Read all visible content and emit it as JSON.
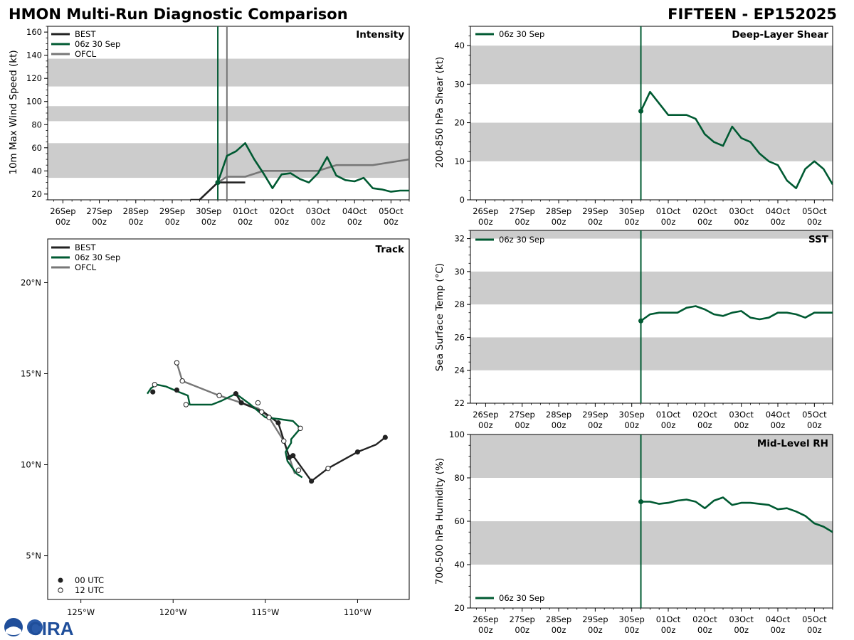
{
  "header": {
    "title_left": "HMON Multi-Run Diagnostic Comparison",
    "title_right": "FIFTEEN - EP152025"
  },
  "time_axis": {
    "day_ticks": [
      {
        "day": "26Sep",
        "hour": "00z",
        "t": 0
      },
      {
        "day": "27Sep",
        "hour": "00z",
        "t": 24
      },
      {
        "day": "28Sep",
        "hour": "00z",
        "t": 48
      },
      {
        "day": "29Sep",
        "hour": "00z",
        "t": 72
      },
      {
        "day": "30Sep",
        "hour": "00z",
        "t": 96
      },
      {
        "day": "01Oct",
        "hour": "00z",
        "t": 120
      },
      {
        "day": "02Oct",
        "hour": "00z",
        "t": 144
      },
      {
        "day": "03Oct",
        "hour": "00z",
        "t": 168
      },
      {
        "day": "04Oct",
        "hour": "00z",
        "t": 192
      },
      {
        "day": "05Oct",
        "hour": "00z",
        "t": 216
      }
    ],
    "range_hours": [
      -10,
      228
    ],
    "init_time_hours": 102,
    "ofcl_init_hours": 108
  },
  "legend": {
    "best": "BEST",
    "run": "06z 30 Sep",
    "ofcl": "OFCL",
    "utc00": "00 UTC",
    "utc12": "12 UTC"
  },
  "colors": {
    "best": "#222222",
    "run": "#005a32",
    "ofcl": "#777777",
    "band": "#cccccc"
  },
  "chart_data": [
    {
      "type": "line",
      "id": "intensity",
      "title": "Intensity",
      "ylabel": "10m Max Wind Speed (kt)",
      "ylim": [
        15,
        165
      ],
      "yticks": [
        20,
        40,
        60,
        80,
        100,
        120,
        140,
        160
      ],
      "bands": [
        [
          34,
          64
        ],
        [
          83,
          96
        ],
        [
          113,
          137
        ]
      ],
      "series": [
        {
          "name": "BEST",
          "x": [
            84,
            90,
            102,
            108,
            120
          ],
          "values": [
            15,
            15,
            30,
            30,
            30
          ]
        },
        {
          "name": "06z 30 Sep",
          "x": [
            102,
            108,
            114,
            120,
            126,
            132,
            138,
            144,
            150,
            156,
            162,
            168,
            174,
            180,
            186,
            192,
            198,
            204,
            210,
            216,
            222,
            228
          ],
          "values": [
            30,
            53,
            57,
            64,
            50,
            38,
            25,
            37,
            38,
            33,
            30,
            38,
            52,
            36,
            32,
            31,
            34,
            25,
            24,
            22,
            23,
            23
          ]
        },
        {
          "name": "OFCL",
          "x": [
            102,
            108,
            120,
            132,
            144,
            156,
            168,
            180,
            204,
            228
          ],
          "values": [
            30,
            35,
            35,
            40,
            40,
            40,
            40,
            45,
            45,
            50
          ]
        }
      ]
    },
    {
      "type": "map",
      "id": "track",
      "title": "Track",
      "xlim": [
        -126.8,
        -107.2
      ],
      "ylim": [
        2.6,
        22.4
      ],
      "xticks": [
        {
          "v": -125,
          "label": "125°W"
        },
        {
          "v": -120,
          "label": "120°W"
        },
        {
          "v": -115,
          "label": "115°W"
        },
        {
          "v": -110,
          "label": "110°W"
        }
      ],
      "yticks": [
        {
          "v": 5,
          "label": "5°N"
        },
        {
          "v": 10,
          "label": "10°N"
        },
        {
          "v": 15,
          "label": "15°N"
        },
        {
          "v": 20,
          "label": "20°N"
        }
      ],
      "series": [
        {
          "name": "BEST",
          "lon": [
            -108.5,
            -109.0,
            -110.0,
            -111.6,
            -112.5,
            -113.5,
            -113.7,
            -114.3,
            -114.7,
            -115.1,
            -116.3,
            -116.6
          ],
          "lat": [
            11.5,
            11.1,
            10.7,
            9.8,
            9.1,
            10.5,
            10.4,
            12.3,
            12.6,
            12.9,
            13.4,
            13.9
          ],
          "points00": [
            [
              -108.5,
              11.5
            ],
            [
              -110.0,
              10.7
            ],
            [
              -112.5,
              9.1
            ],
            [
              -113.5,
              10.5
            ],
            [
              -113.7,
              10.4
            ],
            [
              -114.3,
              12.3
            ],
            [
              -116.3,
              13.4
            ],
            [
              -116.6,
              13.9
            ],
            [
              -119.8,
              14.1
            ],
            [
              -121.1,
              14.0
            ]
          ],
          "points12": [
            [
              -111.6,
              9.8
            ],
            [
              -113.2,
              9.7
            ],
            [
              -113.1,
              12.0
            ],
            [
              -114.0,
              11.3
            ],
            [
              -114.8,
              12.6
            ],
            [
              -115.2,
              12.9
            ],
            [
              -115.4,
              13.4
            ],
            [
              -117.5,
              13.8
            ],
            [
              -119.3,
              13.3
            ],
            [
              -119.5,
              14.6
            ],
            [
              -119.8,
              15.6
            ],
            [
              -121.0,
              14.4
            ]
          ]
        },
        {
          "name": "06z 30 Sep",
          "lon": [
            -113.0,
            -113.3,
            -113.8,
            -113.9,
            -113.6,
            -113.6,
            -113.1,
            -113.5,
            -114.2,
            -115.0,
            -115.8,
            -116.6,
            -117.4,
            -117.9,
            -119.1,
            -119.2,
            -119.7,
            -120.4,
            -120.9,
            -121.2,
            -121.4
          ],
          "lat": [
            9.3,
            9.5,
            10.2,
            10.7,
            11.2,
            11.4,
            12.0,
            12.4,
            12.5,
            12.6,
            13.3,
            13.9,
            13.5,
            13.3,
            13.3,
            13.8,
            14.0,
            14.3,
            14.4,
            14.2,
            13.9
          ]
        },
        {
          "name": "OFCL",
          "lon": [
            -113.4,
            -114.0,
            -114.8,
            -115.4,
            -117.5,
            -119.5,
            -119.8
          ],
          "lat": [
            9.5,
            11.3,
            12.6,
            13.1,
            13.8,
            14.6,
            15.6
          ]
        }
      ]
    },
    {
      "type": "line",
      "id": "shear",
      "title": "Deep-Layer Shear",
      "ylabel": "200-850 hPa Shear (kt)",
      "ylim": [
        0,
        45
      ],
      "yticks": [
        0,
        10,
        20,
        30,
        40
      ],
      "bands": [
        [
          10,
          20
        ],
        [
          30,
          40
        ]
      ],
      "series": [
        {
          "name": "06z 30 Sep",
          "x": [
            102,
            108,
            114,
            120,
            126,
            132,
            138,
            144,
            150,
            156,
            162,
            168,
            174,
            180,
            186,
            192,
            198,
            204,
            210,
            216,
            222,
            228
          ],
          "values": [
            23,
            28,
            25,
            22,
            22,
            22,
            21,
            17,
            15,
            14,
            19,
            16,
            15,
            12,
            10,
            9,
            5,
            3,
            8,
            10,
            8,
            4
          ]
        }
      ]
    },
    {
      "type": "line",
      "id": "sst",
      "title": "SST",
      "ylabel": "Sea Surface Temp (°C)",
      "ylim": [
        22,
        32.5
      ],
      "yticks": [
        22,
        24,
        26,
        28,
        30,
        32
      ],
      "bands": [
        [
          24,
          26
        ],
        [
          28,
          30
        ],
        [
          32,
          32.5
        ]
      ],
      "series": [
        {
          "name": "06z 30 Sep",
          "x": [
            102,
            108,
            114,
            120,
            126,
            132,
            138,
            144,
            150,
            156,
            162,
            168,
            174,
            180,
            186,
            192,
            198,
            204,
            210,
            216,
            222,
            228
          ],
          "values": [
            27.0,
            27.4,
            27.5,
            27.5,
            27.5,
            27.8,
            27.9,
            27.7,
            27.4,
            27.3,
            27.5,
            27.6,
            27.2,
            27.1,
            27.2,
            27.5,
            27.5,
            27.4,
            27.2,
            27.5,
            27.5,
            27.5
          ]
        }
      ]
    },
    {
      "type": "line",
      "id": "rh",
      "title": "Mid-Level RH",
      "ylabel": "700-500 hPa Humidity (%)",
      "ylim": [
        20,
        100
      ],
      "yticks": [
        20,
        40,
        60,
        80,
        100
      ],
      "bands": [
        [
          40,
          60
        ],
        [
          80,
          100
        ]
      ],
      "series": [
        {
          "name": "06z 30 Sep",
          "x": [
            102,
            108,
            114,
            120,
            126,
            132,
            138,
            144,
            150,
            156,
            162,
            168,
            174,
            180,
            186,
            192,
            198,
            204,
            210,
            216,
            222,
            228
          ],
          "values": [
            69,
            69,
            68,
            68.5,
            69.5,
            70,
            69,
            66,
            69.5,
            71,
            67.5,
            68.5,
            68.5,
            68,
            67.5,
            65.5,
            66,
            64.5,
            62.5,
            59,
            57.5,
            55
          ]
        }
      ]
    }
  ],
  "logo": {
    "text": "CIRA"
  }
}
